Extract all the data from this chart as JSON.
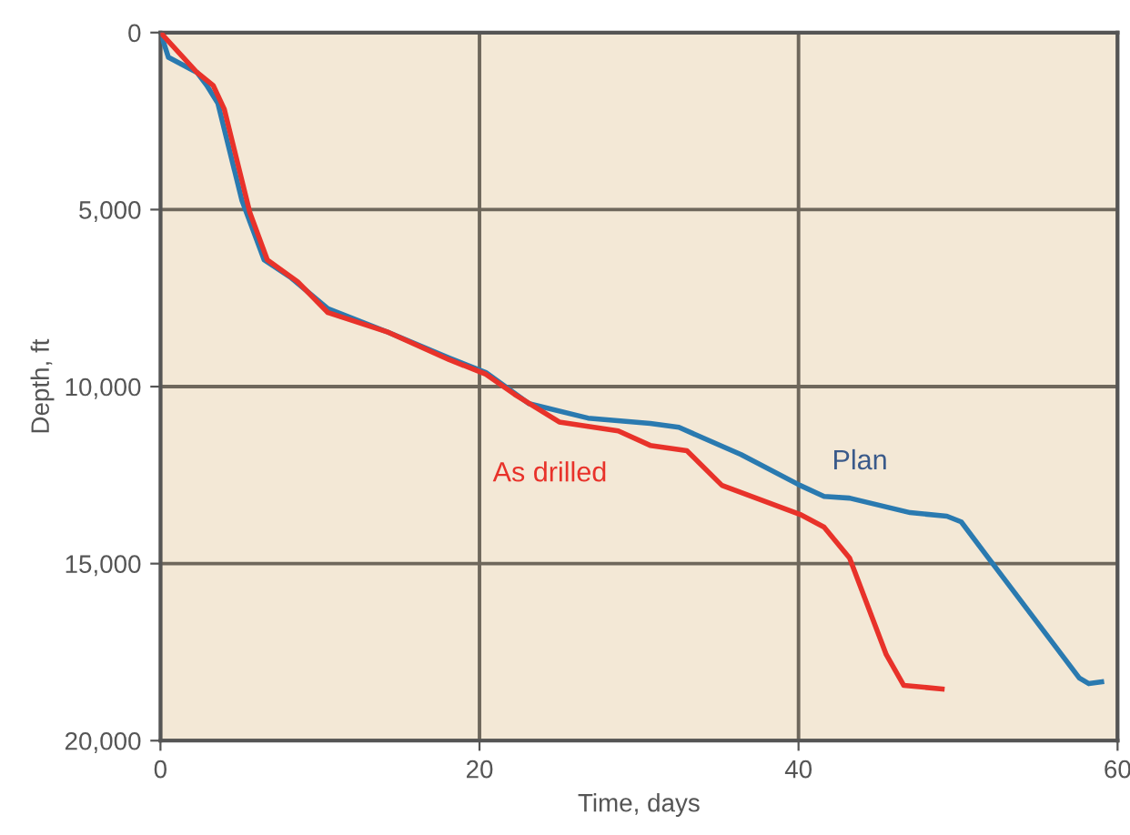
{
  "chart_data": {
    "type": "line",
    "xlabel": "Time, days",
    "ylabel": "Depth, ft",
    "xlim": [
      0,
      60
    ],
    "ylim": [
      20000,
      0
    ],
    "xticks": [
      0,
      20,
      40,
      60
    ],
    "yticks": [
      0,
      {
        "value": 5000,
        "label": "5,000"
      },
      {
        "value": 10000,
        "label": "10,000"
      },
      {
        "value": 15000,
        "label": "15,000"
      },
      {
        "value": 20000,
        "label": "20,000"
      }
    ],
    "grid": true,
    "legend": false,
    "marker": "none",
    "line_style": "solid",
    "series": [
      {
        "name": "Plan",
        "color": "#2a7ab0",
        "x": [
          0,
          0.5,
          2.3,
          2.9,
          3.6,
          5.1,
          6.5,
          8.2,
          10.5,
          14.3,
          18.1,
          20.4,
          23.1,
          26.8,
          30.7,
          32.5,
          36.4,
          40.1,
          41.6,
          43.2,
          47,
          49.3,
          50.2,
          51.9,
          57.6,
          58.2,
          59
        ],
        "values": [
          0,
          700,
          1130,
          1490,
          2000,
          4730,
          6420,
          6930,
          7800,
          8470,
          9190,
          9600,
          10480,
          10890,
          11040,
          11150,
          11920,
          12790,
          13100,
          13150,
          13560,
          13660,
          13820,
          14840,
          18230,
          18390,
          18340
        ]
      },
      {
        "name": "As drilled",
        "color": "#e8322a",
        "x": [
          0,
          2.3,
          3.3,
          4,
          5.6,
          6.7,
          8.6,
          10.5,
          14.3,
          18.1,
          20.4,
          22.2,
          25,
          28.7,
          30.7,
          33,
          35.2,
          40.1,
          41.6,
          43.2,
          45.5,
          46.6,
          49
        ],
        "values": [
          0,
          1130,
          1490,
          2160,
          5080,
          6420,
          7040,
          7910,
          8470,
          9240,
          9650,
          10220,
          11000,
          11250,
          11660,
          11810,
          12790,
          13610,
          13970,
          14840,
          17570,
          18440,
          18540
        ]
      }
    ]
  }
}
